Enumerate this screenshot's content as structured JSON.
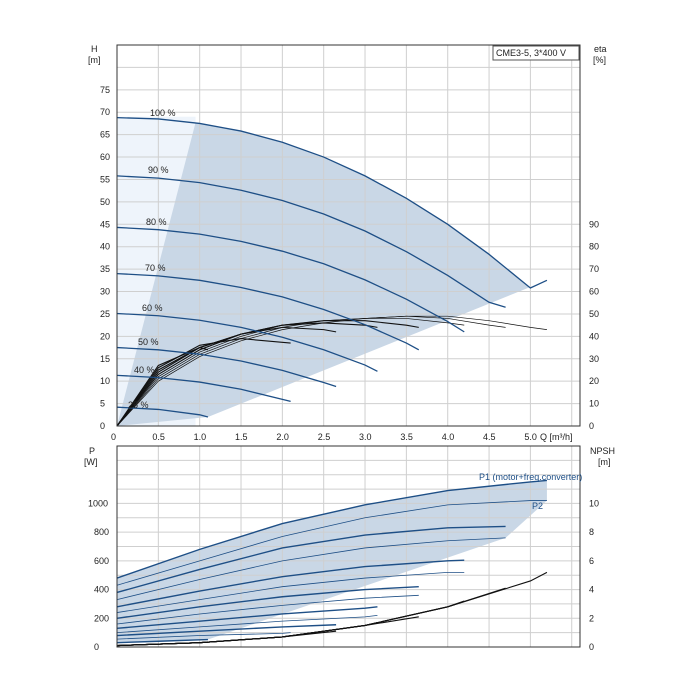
{
  "chart_data": [
    {
      "type": "line",
      "title_box": "CME3-5, 3*400 V",
      "y_left_label": [
        "H",
        "[m]"
      ],
      "y_right_label": [
        "eta",
        "[%]"
      ],
      "x_label": "Q [m³/h]",
      "x_ticks": [
        "0",
        "0.5",
        "1.0",
        "1.5",
        "2.0",
        "2.5",
        "3.0",
        "3.5",
        "4.0",
        "4.5",
        "5.0"
      ],
      "y_left_ticks": [
        "0",
        "5",
        "10",
        "15",
        "20",
        "25",
        "30",
        "35",
        "40",
        "45",
        "50",
        "55",
        "60",
        "65",
        "70",
        "75"
      ],
      "y_right_ticks": [
        "0",
        "10",
        "20",
        "30",
        "40",
        "50",
        "60",
        "70",
        "80",
        "90"
      ],
      "xlim": [
        0,
        5.6
      ],
      "ylim": [
        0,
        85
      ],
      "speed_labels": [
        "100 %",
        "90 %",
        "80 %",
        "70 %",
        "60 %",
        "50 %",
        "40 %",
        "25 %"
      ],
      "head_curves": [
        {
          "speed": 100,
          "x": [
            0,
            0.5,
            1.0,
            1.5,
            2.0,
            2.5,
            3.0,
            3.5,
            4.0,
            4.5,
            5.0,
            5.2
          ],
          "y": [
            68.8,
            68.5,
            67.5,
            65.8,
            63.3,
            60.0,
            55.8,
            50.8,
            45.0,
            38.3,
            30.8,
            32.5
          ]
        },
        {
          "speed": 90,
          "x": [
            0,
            0.5,
            1.0,
            1.5,
            2.0,
            2.5,
            3.0,
            3.5,
            4.0,
            4.5,
            4.7
          ],
          "y": [
            55.8,
            55.3,
            54.3,
            52.6,
            50.3,
            47.3,
            43.5,
            38.9,
            33.6,
            27.6,
            26.5
          ]
        },
        {
          "speed": 80,
          "x": [
            0,
            0.5,
            1.0,
            1.5,
            2.0,
            2.5,
            3.0,
            3.5,
            4.0,
            4.2
          ],
          "y": [
            44.3,
            43.8,
            42.8,
            41.2,
            39.0,
            36.2,
            32.6,
            28.3,
            23.3,
            21.0
          ]
        },
        {
          "speed": 70,
          "x": [
            0,
            0.5,
            1.0,
            1.5,
            2.0,
            2.5,
            3.0,
            3.5,
            3.65
          ],
          "y": [
            34.0,
            33.5,
            32.5,
            30.9,
            28.8,
            26.0,
            22.6,
            18.5,
            17.0
          ]
        },
        {
          "speed": 60,
          "x": [
            0,
            0.5,
            1.0,
            1.5,
            2.0,
            2.5,
            3.0,
            3.15
          ],
          "y": [
            25.1,
            24.6,
            23.6,
            22.0,
            19.8,
            17.0,
            13.6,
            12.2
          ]
        },
        {
          "speed": 50,
          "x": [
            0,
            0.5,
            1.0,
            1.5,
            2.0,
            2.5,
            2.65
          ],
          "y": [
            17.5,
            17.0,
            16.0,
            14.5,
            12.4,
            9.7,
            8.8
          ]
        },
        {
          "speed": 40,
          "x": [
            0,
            0.5,
            1.0,
            1.5,
            2.1
          ],
          "y": [
            11.3,
            10.8,
            9.8,
            8.2,
            5.5
          ]
        },
        {
          "speed": 25,
          "x": [
            0,
            0.5,
            1.0,
            1.1
          ],
          "y": [
            4.2,
            3.7,
            2.5,
            2.0
          ]
        }
      ],
      "eta_curves_y_right_units": [
        {
          "x": [
            0,
            0.5,
            1.0,
            1.5,
            2.0,
            2.5,
            3.0,
            3.5,
            4.0,
            4.5,
            5.0,
            5.2
          ],
          "y": [
            0,
            20,
            31,
            38,
            43,
            46,
            48,
            49,
            49,
            47,
            44,
            43
          ]
        },
        {
          "x": [
            0,
            0.5,
            1.0,
            1.5,
            2.0,
            2.5,
            3.0,
            3.5,
            4.0,
            4.5,
            4.7
          ],
          "y": [
            0,
            21,
            32,
            39,
            44,
            47,
            48,
            49,
            48,
            45,
            44
          ]
        },
        {
          "x": [
            0,
            0.5,
            1.0,
            1.5,
            2.0,
            2.5,
            3.0,
            3.5,
            4.0,
            4.2
          ],
          "y": [
            0,
            22,
            33,
            40,
            45,
            47,
            48,
            48,
            46,
            45
          ]
        },
        {
          "x": [
            0,
            0.5,
            1.0,
            1.5,
            2.0,
            2.5,
            3.0,
            3.5,
            3.65
          ],
          "y": [
            0,
            23,
            34,
            41,
            45,
            47,
            47,
            45,
            44
          ]
        },
        {
          "x": [
            0,
            0.5,
            1.0,
            1.5,
            2.0,
            2.5,
            3.0,
            3.15
          ],
          "y": [
            0,
            24,
            35,
            41,
            45,
            46,
            45,
            44
          ]
        },
        {
          "x": [
            0,
            0.5,
            1.0,
            1.5,
            2.0,
            2.5,
            2.65
          ],
          "y": [
            0,
            25,
            35,
            41,
            44,
            43,
            42
          ]
        },
        {
          "x": [
            0,
            0.5,
            1.0,
            1.5,
            2.1
          ],
          "y": [
            0,
            26,
            36,
            39,
            37
          ]
        },
        {
          "x": [
            0,
            0.5,
            1.0,
            1.1
          ],
          "y": [
            0,
            27,
            35,
            34
          ]
        }
      ]
    },
    {
      "type": "line",
      "y_left_label": [
        "P",
        "[W]"
      ],
      "y_right_label": [
        "NPSH",
        "[m]"
      ],
      "y_left_ticks": [
        "0",
        "200",
        "400",
        "600",
        "800",
        "1000"
      ],
      "y_right_ticks": [
        "0",
        "2",
        "4",
        "6",
        "8",
        "10"
      ],
      "xlim": [
        0,
        5.6
      ],
      "ylim": [
        0,
        1400
      ],
      "series_labels": [
        "P1 (motor+freq.converter)",
        "P2"
      ],
      "power_curves": [
        {
          "name": "P1 (motor+freq.converter)",
          "x": [
            0,
            1.0,
            2.0,
            3.0,
            4.0,
            5.0,
            5.2
          ],
          "y": [
            480,
            680,
            860,
            990,
            1090,
            1150,
            1160
          ]
        },
        {
          "name": "P2",
          "x": [
            0,
            1.0,
            2.0,
            3.0,
            4.0,
            5.0,
            5.2
          ],
          "y": [
            430,
            600,
            770,
            900,
            990,
            1020,
            1020
          ]
        },
        {
          "x": [
            0,
            1.0,
            2.0,
            3.0,
            4.0,
            4.7
          ],
          "y": [
            380,
            540,
            690,
            780,
            830,
            840
          ]
        },
        {
          "x": [
            0,
            1.0,
            2.0,
            3.0,
            4.0,
            4.7
          ],
          "y": [
            330,
            470,
            600,
            690,
            740,
            760
          ]
        },
        {
          "x": [
            0,
            1.0,
            2.0,
            3.0,
            4.0,
            4.2
          ],
          "y": [
            280,
            390,
            490,
            560,
            600,
            605
          ]
        },
        {
          "x": [
            0,
            1.0,
            2.0,
            3.0,
            4.0,
            4.2
          ],
          "y": [
            240,
            330,
            420,
            480,
            520,
            520
          ]
        },
        {
          "x": [
            0,
            1.0,
            2.0,
            3.0,
            3.65
          ],
          "y": [
            200,
            280,
            350,
            400,
            420
          ]
        },
        {
          "x": [
            0,
            1.0,
            2.0,
            3.0,
            3.65
          ],
          "y": [
            160,
            230,
            290,
            340,
            360
          ]
        },
        {
          "x": [
            0,
            1.0,
            2.0,
            3.0,
            3.15
          ],
          "y": [
            130,
            180,
            230,
            270,
            280
          ]
        },
        {
          "x": [
            0,
            1.0,
            2.0,
            3.0,
            3.15
          ],
          "y": [
            100,
            140,
            180,
            210,
            220
          ]
        },
        {
          "x": [
            0,
            1.0,
            2.0,
            2.65
          ],
          "y": [
            80,
            110,
            140,
            155
          ]
        },
        {
          "x": [
            0,
            1.0,
            2.0,
            2.1
          ],
          "y": [
            55,
            80,
            95,
            100
          ]
        },
        {
          "x": [
            0,
            0.5,
            1.0,
            1.1
          ],
          "y": [
            30,
            40,
            50,
            52
          ]
        }
      ],
      "npsh_curves_right_units": [
        {
          "x": [
            0,
            1.0,
            2.0,
            3.0,
            4.0,
            5.0,
            5.2
          ],
          "y": [
            0.1,
            0.3,
            0.7,
            1.5,
            2.8,
            4.6,
            5.2
          ]
        },
        {
          "x": [
            0,
            1.0,
            2.0,
            3.0,
            4.0,
            4.7
          ],
          "y": [
            0.1,
            0.3,
            0.7,
            1.5,
            2.8,
            4.1
          ]
        },
        {
          "x": [
            0,
            1.0,
            2.0,
            3.0,
            4.0,
            4.2
          ],
          "y": [
            0.1,
            0.3,
            0.7,
            1.5,
            2.8,
            3.2
          ]
        },
        {
          "x": [
            0,
            1.0,
            2.0,
            3.0,
            3.65
          ],
          "y": [
            0.1,
            0.3,
            0.7,
            1.5,
            2.1
          ]
        },
        {
          "x": [
            0,
            1.0,
            2.0,
            3.0,
            3.15
          ],
          "y": [
            0.1,
            0.3,
            0.7,
            1.5,
            1.7
          ]
        },
        {
          "x": [
            0,
            1.0,
            2.0,
            2.65
          ],
          "y": [
            0.1,
            0.3,
            0.7,
            1.1
          ]
        },
        {
          "x": [
            0,
            1.0,
            2.0,
            2.1
          ],
          "y": [
            0.1,
            0.3,
            0.7,
            0.8
          ]
        },
        {
          "x": [
            0,
            1.0,
            1.1
          ],
          "y": [
            0.1,
            0.3,
            0.35
          ]
        }
      ]
    }
  ]
}
